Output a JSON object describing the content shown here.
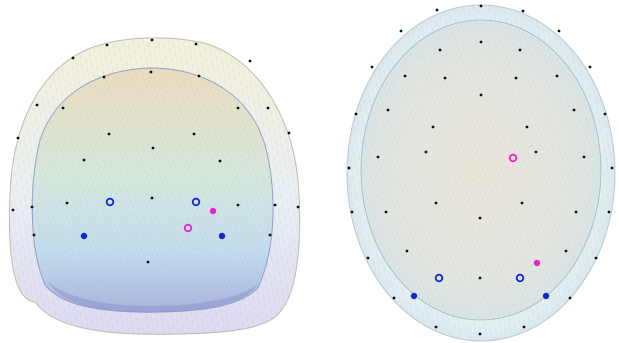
{
  "panels": [
    {
      "id": "front-view",
      "view": "coronal",
      "scalp_colors": [
        "#f4f1de",
        "#e9eef6",
        "#ded9f2"
      ],
      "brain_colors": [
        "#e9dcc2",
        "#cfe6e3",
        "#bcd8ee",
        "#9ea8d8"
      ],
      "electrodes": {
        "black_dot_count": 29,
        "blue_ring_count": 2,
        "blue_filled_count": 2,
        "magenta_ring_count": 1,
        "magenta_filled_count": 1
      }
    },
    {
      "id": "top-view",
      "view": "axial",
      "scalp_colors": [
        "#e3eef3",
        "#d9e8ef"
      ],
      "brain_colors": [
        "#e8e4dc",
        "#dde6e4",
        "#cfe4ec"
      ],
      "electrodes": {
        "black_dot_count": 44,
        "blue_ring_count": 2,
        "blue_filled_count": 2,
        "magenta_ring_count": 1,
        "magenta_filled_count": 1
      }
    }
  ],
  "marker_colors": {
    "electrode": "#111111",
    "blue": "#1424d6",
    "magenta": "#ee22cc",
    "mesh_line": "#8a8a8a"
  }
}
